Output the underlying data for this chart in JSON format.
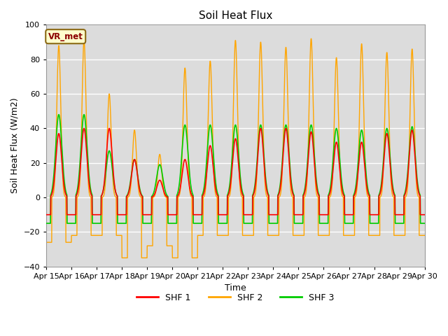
{
  "title": "Soil Heat Flux",
  "xlabel": "Time",
  "ylabel": "Soil Heat Flux (W/m2)",
  "ylim": [
    -40,
    100
  ],
  "yticks": [
    -40,
    -20,
    0,
    20,
    40,
    60,
    80,
    100
  ],
  "colors": {
    "SHF 1": "#ff0000",
    "SHF 2": "#ffa500",
    "SHF 3": "#00cc00"
  },
  "legend_label": "VR_met",
  "background_color": "#ffffff",
  "plot_bg_color": "#dcdcdc",
  "start_day": 15,
  "end_day": 30,
  "n_points_per_day": 144,
  "shf1_night": -10,
  "shf2_night": -25,
  "shf3_night": -15,
  "shf1_day_amps": [
    37,
    40,
    40,
    22,
    10,
    22,
    30,
    34,
    40,
    40,
    38,
    32,
    32,
    37,
    39
  ],
  "shf2_day_amps": [
    88,
    91,
    60,
    39,
    25,
    75,
    79,
    91,
    90,
    87,
    92,
    81,
    89,
    84,
    86
  ],
  "shf3_day_amps": [
    48,
    48,
    27,
    22,
    19,
    42,
    42,
    42,
    42,
    42,
    42,
    40,
    39,
    40,
    41
  ],
  "shf2_night_amps": [
    26,
    22,
    22,
    35,
    28,
    35,
    22,
    22,
    22,
    22,
    22,
    22,
    22,
    22,
    22
  ]
}
